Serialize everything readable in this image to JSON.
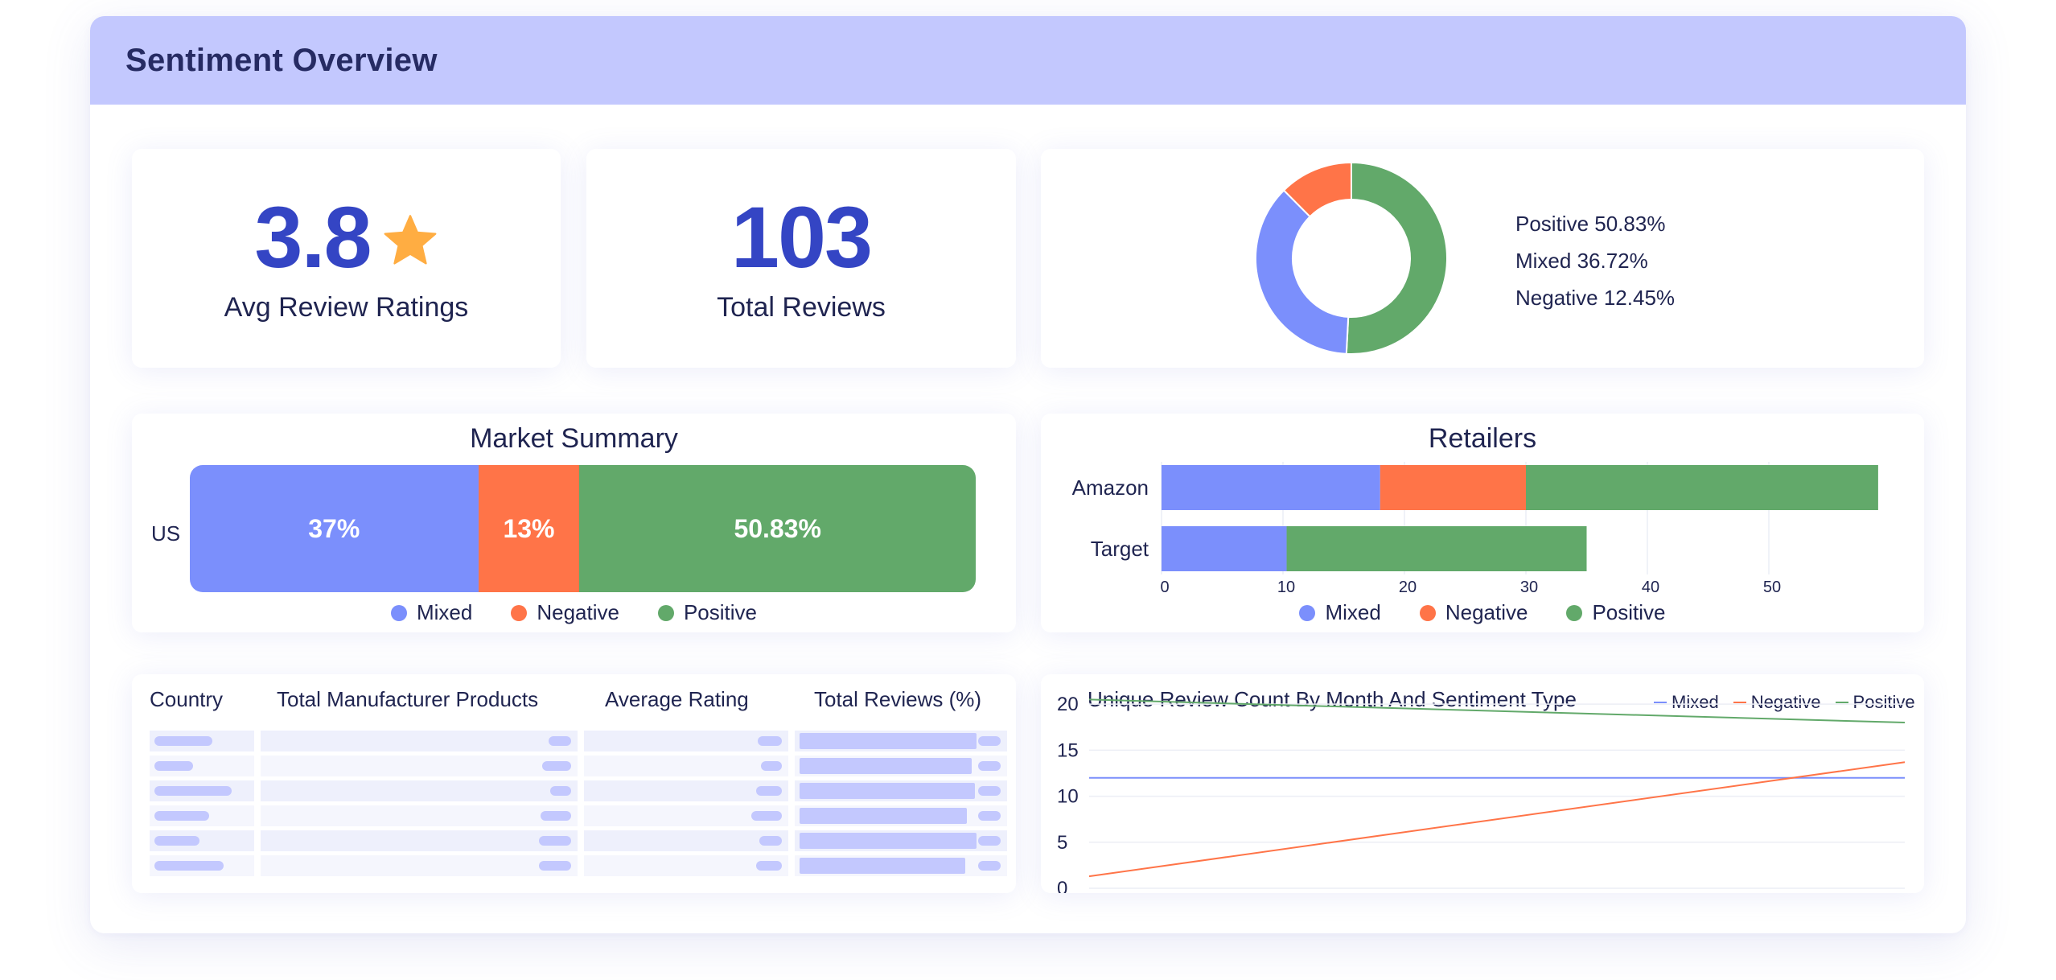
{
  "header": {
    "title": "Sentiment Overview"
  },
  "colors": {
    "mixed": "#7b8ffc",
    "negative": "#ff7448",
    "positive": "#62a96a",
    "accent": "#3445c4",
    "star": "#ffad42"
  },
  "kpis": {
    "avg_rating": {
      "value": "3.8",
      "label": "Avg Review Ratings",
      "icon": "star-icon"
    },
    "total_reviews": {
      "value": "103",
      "label": "Total Reviews"
    }
  },
  "sentiment_split": {
    "legend": [
      "Positive 50.83%",
      "Mixed 36.72%",
      "Negative 12.45%"
    ],
    "values": {
      "positive": 50.83,
      "mixed": 36.72,
      "negative": 12.45
    }
  },
  "market_summary": {
    "title": "Market Summary",
    "row_label": "US",
    "segments": [
      {
        "key": "mixed",
        "label": "37%",
        "value": 37
      },
      {
        "key": "negative",
        "label": "13%",
        "value": 13
      },
      {
        "key": "positive",
        "label": "50.83%",
        "value": 50.83
      }
    ],
    "legend": [
      "Mixed",
      "Negative",
      "Positive"
    ]
  },
  "retailers": {
    "title": "Retailers",
    "legend": [
      "Mixed",
      "Negative",
      "Positive"
    ],
    "x_ticks": [
      "0",
      "10",
      "20",
      "30",
      "40",
      "50"
    ]
  },
  "table": {
    "headers": [
      "Country",
      "Total Manufacturer Products",
      "Average Rating",
      "Total Reviews (%)"
    ]
  },
  "trend": {
    "title": "Unique Review Count By Month And Sentiment Type",
    "legend": [
      "Mixed",
      "Negative",
      "Positive"
    ],
    "y_ticks": [
      "20",
      "15",
      "10",
      "5",
      "0"
    ]
  },
  "chart_data": [
    {
      "type": "pie",
      "categories": [
        "Positive",
        "Mixed",
        "Negative"
      ],
      "values": [
        50.83,
        36.72,
        12.45
      ]
    },
    {
      "type": "bar",
      "title": "Market Summary",
      "categories": [
        "US"
      ],
      "series": [
        {
          "name": "Mixed",
          "values": [
            37
          ]
        },
        {
          "name": "Negative",
          "values": [
            13
          ]
        },
        {
          "name": "Positive",
          "values": [
            50.83
          ]
        }
      ],
      "legend": "bottom"
    },
    {
      "type": "bar",
      "title": "Retailers",
      "categories": [
        "Amazon",
        "Target"
      ],
      "series": [
        {
          "name": "Mixed",
          "values": [
            18,
            10.3
          ]
        },
        {
          "name": "Negative",
          "values": [
            12,
            0
          ]
        },
        {
          "name": "Positive",
          "values": [
            29,
            24.7
          ]
        }
      ],
      "xlim": [
        0,
        60
      ],
      "x_ticks": [
        0,
        10,
        20,
        30,
        40,
        50
      ],
      "legend": "bottom"
    },
    {
      "type": "line",
      "title": "Unique Review Count By Month And Sentiment Type",
      "x": [
        0,
        1
      ],
      "series": [
        {
          "name": "Mixed",
          "values": [
            12,
            12
          ]
        },
        {
          "name": "Negative",
          "values": [
            1.3,
            13.7
          ]
        },
        {
          "name": "Positive",
          "values": [
            20.5,
            18
          ]
        }
      ],
      "ylim": [
        0,
        20
      ],
      "y_ticks": [
        0,
        5,
        10,
        15,
        20
      ],
      "legend": "top-right"
    }
  ]
}
